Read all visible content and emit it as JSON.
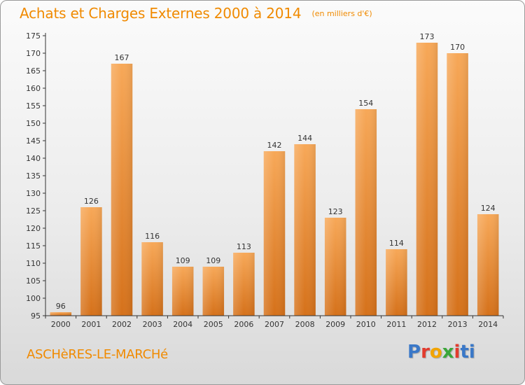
{
  "title": "Achats et Charges Externes 2000 à 2014",
  "unit": "(en milliers d'€)",
  "commune": "ASCHèRES-LE-MARCHé",
  "logo_text": "Proxiti",
  "colors": {
    "accent": "#f08a00",
    "bar_light": "#f6a655",
    "bar_dark": "#d8741c",
    "axis": "#333333",
    "grid_label": "#333333"
  },
  "chart_data": {
    "type": "bar",
    "title": "Achats et Charges Externes 2000 à 2014",
    "subtitle": "(en milliers d'€)",
    "xlabel": "",
    "ylabel": "",
    "categories": [
      "2000",
      "2001",
      "2002",
      "2003",
      "2004",
      "2005",
      "2006",
      "2007",
      "2008",
      "2009",
      "2010",
      "2011",
      "2012",
      "2013",
      "2014"
    ],
    "values": [
      96,
      126,
      167,
      116,
      109,
      109,
      113,
      142,
      144,
      123,
      154,
      114,
      173,
      170,
      124
    ],
    "ylim": [
      95,
      175
    ],
    "yticks": [
      95,
      100,
      105,
      110,
      115,
      120,
      125,
      130,
      135,
      140,
      145,
      150,
      155,
      160,
      165,
      170,
      175
    ],
    "grid": false,
    "legend": "none"
  }
}
